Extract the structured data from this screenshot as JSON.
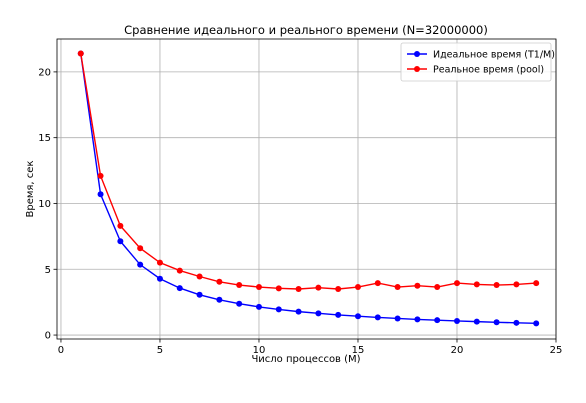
{
  "chart_data": {
    "type": "line",
    "title": "Сравнение идеального и реального времени (N=32000000)",
    "xlabel": "Число процессов (M)",
    "ylabel": "Время, сек",
    "xlim": [
      -0.2,
      25.0
    ],
    "ylim": [
      -0.3,
      22.5
    ],
    "xticks": [
      0,
      5,
      10,
      15,
      20,
      25
    ],
    "yticks": [
      0,
      5,
      10,
      15,
      20
    ],
    "grid": true,
    "legend_position": "top-right",
    "x": [
      1,
      2,
      3,
      4,
      5,
      6,
      7,
      8,
      9,
      10,
      11,
      12,
      13,
      14,
      15,
      16,
      17,
      18,
      19,
      20,
      21,
      22,
      23,
      24
    ],
    "series": [
      {
        "name": "Идеальное время (T1/M)",
        "color": "#0000ff",
        "values": [
          21.4,
          10.7,
          7.13,
          5.35,
          4.28,
          3.57,
          3.06,
          2.68,
          2.38,
          2.14,
          1.95,
          1.78,
          1.65,
          1.53,
          1.43,
          1.34,
          1.26,
          1.19,
          1.13,
          1.07,
          1.02,
          0.97,
          0.93,
          0.89
        ]
      },
      {
        "name": "Реальное время (pool)",
        "color": "#ff0000",
        "values": [
          21.4,
          12.1,
          8.3,
          6.6,
          5.5,
          4.9,
          4.45,
          4.05,
          3.8,
          3.65,
          3.55,
          3.5,
          3.6,
          3.5,
          3.65,
          3.95,
          3.65,
          3.75,
          3.65,
          3.95,
          3.85,
          3.8,
          3.85,
          3.95
        ]
      }
    ]
  }
}
